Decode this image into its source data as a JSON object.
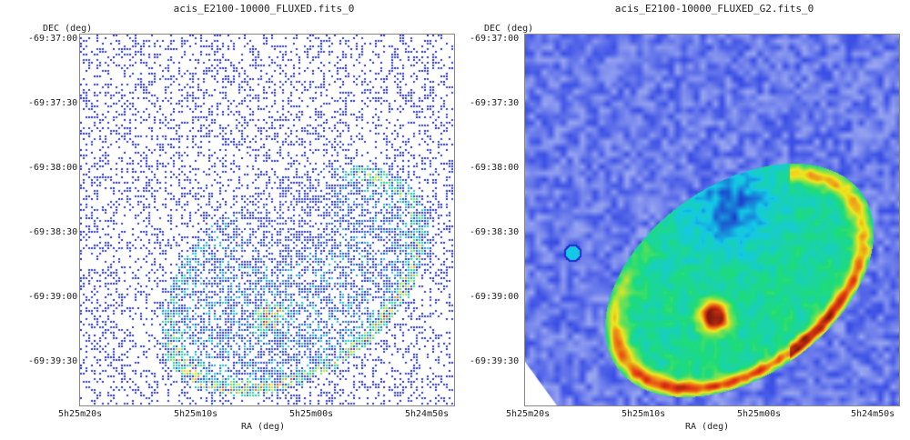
{
  "panels": [
    {
      "title": "acis_E2100-10000_FLUXED.fits_0",
      "y_axis_label": "DEC (deg)",
      "x_axis_label": "RA (deg)",
      "y_ticks": [
        "-69:37:00",
        "-69:37:30",
        "-69:38:00",
        "-69:38:30",
        "-69:39:00",
        "-69:39:30"
      ],
      "x_ticks": [
        "5h25m20s",
        "5h25m10s",
        "5h25m00s",
        "5h24m50s"
      ],
      "style": "raw-counts"
    },
    {
      "title": "acis_E2100-10000_FLUXED_G2.fits_0",
      "y_axis_label": "DEC (deg)",
      "x_axis_label": "RA (deg)",
      "y_ticks": [
        "-69:37:00",
        "-69:37:30",
        "-69:38:00",
        "-69:38:30",
        "-69:39:00",
        "-69:39:30"
      ],
      "x_ticks": [
        "5h25m20s",
        "5h25m10s",
        "5h25m00s",
        "5h24m50s"
      ],
      "style": "smoothed"
    }
  ],
  "colors": {
    "low": "#2a3fd8",
    "mid": "#18c8e0",
    "high": "#f0e020",
    "peak": "#c01818",
    "background_smooth": "#aab6f2"
  }
}
